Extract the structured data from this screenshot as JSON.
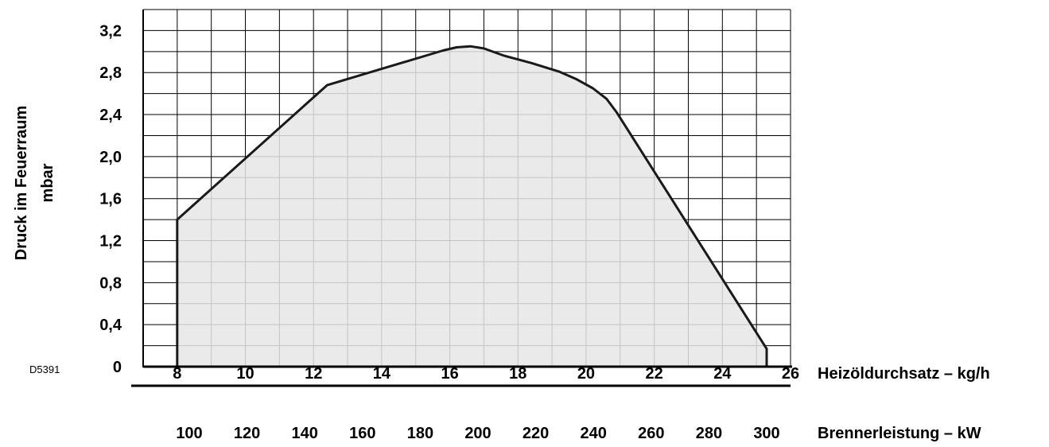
{
  "chart_data": {
    "type": "area",
    "code": "D5391",
    "ylabel": "Druck im Feuerraum",
    "yunit": "mbar",
    "xlabel": "Heizöldurchsatz – kg/h",
    "x2label": "Brennerleistung –  kW",
    "xlim": [
      7,
      26
    ],
    "ylim": [
      0,
      3.4
    ],
    "x_ticks": [
      8,
      10,
      12,
      14,
      16,
      18,
      20,
      22,
      24,
      26
    ],
    "x_tick_labels": [
      "8",
      "10",
      "12",
      "14",
      "16",
      "18",
      "20",
      "22",
      "24",
      "26"
    ],
    "x2_ticks": [
      100,
      120,
      140,
      160,
      180,
      200,
      220,
      240,
      260,
      280,
      300
    ],
    "x2_tick_labels": [
      "100",
      "120",
      "140",
      "160",
      "180",
      "200",
      "220",
      "240",
      "260",
      "280",
      "300"
    ],
    "y_ticks": [
      0,
      0.4,
      0.8,
      1.2,
      1.6,
      2.0,
      2.4,
      2.8,
      3.2
    ],
    "y_tick_labels": [
      "0",
      "0,4",
      "0,8",
      "1,2",
      "1,6",
      "2,0",
      "2,4",
      "2,8",
      "3,2"
    ],
    "grid": true,
    "series": [
      {
        "x": [
          8,
          8,
          12.4,
          15.8,
          16.2,
          16.6,
          17.0,
          17.6,
          18.4,
          19.2,
          19.7,
          20.2,
          20.6,
          20.9,
          25.3,
          25.3
        ],
        "y": [
          0,
          1.4,
          2.68,
          3.01,
          3.04,
          3.05,
          3.03,
          2.96,
          2.89,
          2.81,
          2.74,
          2.65,
          2.55,
          2.42,
          0.17,
          0
        ]
      }
    ],
    "colors": {
      "fill": "#e6e6e6",
      "line": "#1a1a1a",
      "grid": "#000000"
    }
  }
}
